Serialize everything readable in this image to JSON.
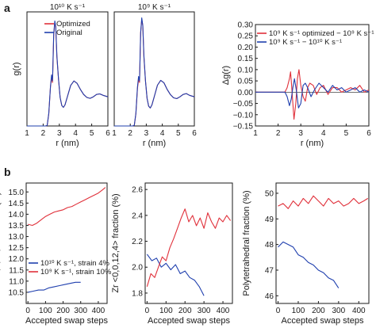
{
  "panel_labels": [
    "a",
    "b"
  ],
  "colors": {
    "red": "#e0303a",
    "blue": "#1f3fae",
    "axis": "#1a1a1a"
  },
  "chart_data": [
    {
      "id": "a1",
      "type": "line",
      "title": "10¹⁰ K s⁻¹",
      "xlabel": "r (nm)",
      "ylabel": "g(r)",
      "xlim": [
        1,
        6
      ],
      "ylim": [
        0,
        3.8
      ],
      "xticks": [
        1,
        2,
        3,
        4,
        5,
        6
      ],
      "yticks": [],
      "legend": {
        "position": "top-right",
        "entries": [
          "Optimized",
          "Original"
        ]
      },
      "series": [
        {
          "name": "Optimized",
          "color": "#e0303a",
          "x": [
            1.0,
            2.15,
            2.25,
            2.35,
            2.45,
            2.52,
            2.58,
            2.65,
            2.72,
            2.78,
            2.85,
            2.95,
            3.05,
            3.15,
            3.25,
            3.35,
            3.5,
            3.7,
            3.9,
            4.1,
            4.3,
            4.5,
            4.7,
            4.9,
            5.1,
            5.3,
            5.5,
            5.7,
            6.0
          ],
          "y": [
            0.0,
            0.0,
            0.02,
            0.4,
            1.3,
            1.6,
            1.45,
            3.0,
            3.45,
            3.3,
            2.3,
            1.55,
            0.95,
            0.68,
            0.62,
            0.7,
            0.98,
            1.35,
            1.5,
            1.42,
            1.22,
            1.05,
            0.95,
            0.92,
            0.97,
            1.05,
            1.07,
            1.02,
            0.97
          ]
        },
        {
          "name": "Original",
          "color": "#1f3fae",
          "x": [
            1.0,
            2.15,
            2.25,
            2.35,
            2.45,
            2.52,
            2.58,
            2.65,
            2.72,
            2.78,
            2.85,
            2.95,
            3.05,
            3.15,
            3.25,
            3.35,
            3.5,
            3.7,
            3.9,
            4.1,
            4.3,
            4.5,
            4.7,
            4.9,
            5.1,
            5.3,
            5.5,
            5.7,
            6.0
          ],
          "y": [
            0.0,
            0.0,
            0.02,
            0.42,
            1.3,
            1.7,
            1.5,
            3.05,
            3.5,
            3.3,
            2.35,
            1.55,
            0.95,
            0.68,
            0.62,
            0.7,
            0.98,
            1.35,
            1.5,
            1.42,
            1.22,
            1.05,
            0.95,
            0.92,
            0.97,
            1.05,
            1.07,
            1.02,
            0.97
          ]
        }
      ]
    },
    {
      "id": "a2",
      "type": "line",
      "title": "10⁹ K s⁻¹",
      "xlabel": "r (nm)",
      "ylabel": "",
      "xlim": [
        1,
        6
      ],
      "ylim": [
        0,
        3.8
      ],
      "xticks": [
        1,
        2,
        3,
        4,
        5,
        6
      ],
      "yticks": [],
      "series": [
        {
          "name": "Optimized",
          "color": "#e0303a",
          "x": [
            1.0,
            2.15,
            2.25,
            2.35,
            2.45,
            2.52,
            2.58,
            2.65,
            2.72,
            2.78,
            2.85,
            2.95,
            3.05,
            3.15,
            3.25,
            3.35,
            3.5,
            3.7,
            3.9,
            4.1,
            4.3,
            4.5,
            4.7,
            4.9,
            5.1,
            5.3,
            5.5,
            5.7,
            6.0
          ],
          "y": [
            0.0,
            0.0,
            0.02,
            0.4,
            1.25,
            1.55,
            1.45,
            3.1,
            3.55,
            3.35,
            2.3,
            1.5,
            0.92,
            0.66,
            0.6,
            0.7,
            0.98,
            1.36,
            1.52,
            1.44,
            1.22,
            1.05,
            0.94,
            0.91,
            0.97,
            1.05,
            1.08,
            1.02,
            0.97
          ]
        },
        {
          "name": "Original",
          "color": "#1f3fae",
          "x": [
            1.0,
            2.15,
            2.25,
            2.35,
            2.45,
            2.52,
            2.58,
            2.65,
            2.72,
            2.78,
            2.85,
            2.95,
            3.05,
            3.15,
            3.25,
            3.35,
            3.5,
            3.7,
            3.9,
            4.1,
            4.3,
            4.5,
            4.7,
            4.9,
            5.1,
            5.3,
            5.5,
            5.7,
            6.0
          ],
          "y": [
            0.0,
            0.0,
            0.02,
            0.42,
            1.3,
            1.65,
            1.5,
            3.1,
            3.6,
            3.35,
            2.35,
            1.5,
            0.92,
            0.66,
            0.6,
            0.7,
            0.98,
            1.36,
            1.52,
            1.44,
            1.22,
            1.05,
            0.94,
            0.91,
            0.97,
            1.05,
            1.08,
            1.02,
            0.97
          ]
        }
      ]
    },
    {
      "id": "a3",
      "type": "line",
      "xlabel": "r (nm)",
      "ylabel": "Δg(r)",
      "xlim": [
        1,
        6
      ],
      "ylim": [
        -0.15,
        0.3
      ],
      "xticks": [
        1,
        2,
        3,
        4,
        5,
        6
      ],
      "yticks": [
        -0.15,
        -0.1,
        -0.05,
        0.0,
        0.05,
        0.1,
        0.15,
        0.2,
        0.25,
        0.3
      ],
      "ytick_labels": [
        "−0.15",
        "−0.10",
        "−0.05",
        "0.00",
        "0.05",
        "0.10",
        "0.15",
        "0.20",
        "0.25",
        "0.30"
      ],
      "legend": {
        "position": "top",
        "entries": [
          "10⁹ K s⁻¹ optimized − 10⁹ K s⁻¹",
          "10⁹ K s⁻¹ − 10¹⁰ K s⁻¹"
        ]
      },
      "series": [
        {
          "name": "10⁹ K s⁻¹ optimized − 10⁹ K s⁻¹",
          "color": "#e0303a",
          "x": [
            1.0,
            2.3,
            2.4,
            2.5,
            2.55,
            2.6,
            2.7,
            2.78,
            2.85,
            2.92,
            3.0,
            3.1,
            3.2,
            3.3,
            3.4,
            3.55,
            3.7,
            3.85,
            4.0,
            4.2,
            4.4,
            4.6,
            4.8,
            5.0,
            5.2,
            5.4,
            5.6,
            5.8,
            6.0
          ],
          "y": [
            0.0,
            0.0,
            0.02,
            0.06,
            0.09,
            0.02,
            -0.12,
            -0.05,
            0.06,
            0.1,
            0.03,
            -0.02,
            -0.04,
            0.02,
            0.04,
            0.03,
            -0.01,
            0.02,
            0.03,
            -0.01,
            0.02,
            0.02,
            0.0,
            0.01,
            0.02,
            0.01,
            0.03,
            0.0,
            0.01
          ]
        },
        {
          "name": "10⁹ K s⁻¹ − 10¹⁰ K s⁻¹",
          "color": "#1f3fae",
          "x": [
            1.0,
            2.3,
            2.4,
            2.5,
            2.58,
            2.65,
            2.72,
            2.8,
            2.9,
            3.0,
            3.1,
            3.2,
            3.3,
            3.45,
            3.6,
            3.8,
            4.0,
            4.2,
            4.4,
            4.6,
            4.8,
            5.0,
            5.2,
            5.4,
            5.6,
            5.8,
            6.0
          ],
          "y": [
            0.0,
            0.0,
            -0.02,
            -0.06,
            -0.03,
            0.02,
            0.06,
            0.01,
            -0.07,
            -0.05,
            0.03,
            0.04,
            0.02,
            -0.02,
            0.01,
            0.04,
            0.02,
            0.0,
            0.03,
            0.01,
            0.02,
            0.0,
            0.01,
            0.02,
            0.0,
            0.01,
            0.0
          ]
        }
      ]
    },
    {
      "id": "b1",
      "type": "line",
      "xlabel": "Accepted swap steps",
      "ylabel": "Cu <0,0,12,0> fraction (%)",
      "xlim": [
        -10,
        450
      ],
      "ylim": [
        10.0,
        15.4
      ],
      "xticks": [
        0,
        100,
        200,
        300,
        400
      ],
      "yticks": [
        10.5,
        11.0,
        11.5,
        12.0,
        12.5,
        13.0,
        13.5,
        14.0,
        14.5,
        15.0
      ],
      "ytick_labels": [
        "10.5",
        "11.0",
        "11.5",
        "12.0",
        "12.5",
        "13.0",
        "13.5",
        "14.0",
        "14.5",
        "15.0"
      ],
      "legend": {
        "position": "bottom-left",
        "entries": [
          "10¹⁰ K s⁻¹, strain 4%",
          "10⁹ K s⁻¹, strain 10%"
        ]
      },
      "series": [
        {
          "name": "10¹⁰ K s⁻¹, strain 4%",
          "color": "#1f3fae",
          "x": [
            0,
            30,
            60,
            90,
            120,
            150,
            180,
            210,
            240,
            270,
            300
          ],
          "y": [
            10.5,
            10.55,
            10.6,
            10.6,
            10.7,
            10.75,
            10.8,
            10.85,
            10.9,
            10.95,
            10.95
          ]
        },
        {
          "name": "10⁹ K s⁻¹, strain 10%",
          "color": "#e0303a",
          "x": [
            0,
            25,
            50,
            75,
            100,
            125,
            150,
            175,
            200,
            225,
            250,
            275,
            300,
            325,
            350,
            375,
            400,
            425,
            440
          ],
          "y": [
            13.55,
            13.5,
            13.6,
            13.75,
            13.9,
            14.0,
            14.1,
            14.15,
            14.2,
            14.3,
            14.35,
            14.45,
            14.55,
            14.65,
            14.75,
            14.85,
            14.95,
            15.1,
            15.2
          ]
        }
      ]
    },
    {
      "id": "b2",
      "type": "line",
      "xlabel": "Accepted swap steps",
      "ylabel": "Zr <0,0,12,4> fraction (%)",
      "xlim": [
        -10,
        450
      ],
      "ylim": [
        1.72,
        2.65
      ],
      "xticks": [
        0,
        100,
        200,
        300,
        400
      ],
      "yticks": [
        1.8,
        2.0,
        2.2,
        2.4,
        2.6
      ],
      "ytick_labels": [
        "1.8",
        "2.0",
        "2.2",
        "2.4",
        "2.6"
      ],
      "series": [
        {
          "name": "10¹⁰ K s⁻¹, strain 4%",
          "color": "#1f3fae",
          "x": [
            0,
            25,
            50,
            75,
            100,
            125,
            150,
            175,
            200,
            225,
            250,
            275,
            300
          ],
          "y": [
            2.1,
            2.05,
            2.07,
            2.0,
            2.03,
            1.98,
            2.02,
            1.95,
            1.97,
            1.92,
            1.9,
            1.85,
            1.78
          ]
        },
        {
          "name": "10⁹ K s⁻¹, strain 10%",
          "color": "#e0303a",
          "x": [
            0,
            20,
            40,
            60,
            80,
            100,
            120,
            140,
            160,
            180,
            200,
            220,
            240,
            260,
            280,
            300,
            320,
            340,
            360,
            380,
            400,
            420,
            440
          ],
          "y": [
            1.85,
            1.95,
            1.92,
            2.0,
            2.08,
            2.05,
            2.15,
            2.22,
            2.3,
            2.38,
            2.45,
            2.35,
            2.4,
            2.32,
            2.38,
            2.3,
            2.42,
            2.35,
            2.3,
            2.38,
            2.35,
            2.4,
            2.36
          ]
        }
      ]
    },
    {
      "id": "b3",
      "type": "line",
      "xlabel": "Accepted swap steps",
      "ylabel": "Polytetrahedral fraction (%)",
      "xlim": [
        -10,
        450
      ],
      "ylim": [
        45.7,
        50.4
      ],
      "xticks": [
        0,
        100,
        200,
        300,
        400
      ],
      "yticks": [
        46,
        47,
        48,
        49,
        50
      ],
      "ytick_labels": [
        "46",
        "47",
        "48",
        "49",
        "50"
      ],
      "series": [
        {
          "name": "10¹⁰ K s⁻¹, strain 4%",
          "color": "#1f3fae",
          "x": [
            0,
            25,
            50,
            75,
            100,
            125,
            150,
            175,
            200,
            225,
            250,
            275,
            300
          ],
          "y": [
            47.9,
            48.1,
            48.0,
            47.9,
            47.6,
            47.5,
            47.3,
            47.2,
            47.0,
            46.9,
            46.7,
            46.6,
            46.3
          ]
        },
        {
          "name": "10⁹ K s⁻¹, strain 10%",
          "color": "#e0303a",
          "x": [
            0,
            25,
            50,
            75,
            100,
            125,
            150,
            175,
            200,
            225,
            250,
            275,
            300,
            325,
            350,
            375,
            400,
            425,
            445
          ],
          "y": [
            49.5,
            49.6,
            49.4,
            49.7,
            49.5,
            49.8,
            49.6,
            49.9,
            49.7,
            49.5,
            49.8,
            49.6,
            49.7,
            49.5,
            49.6,
            49.8,
            49.6,
            49.7,
            49.8
          ]
        }
      ]
    }
  ]
}
